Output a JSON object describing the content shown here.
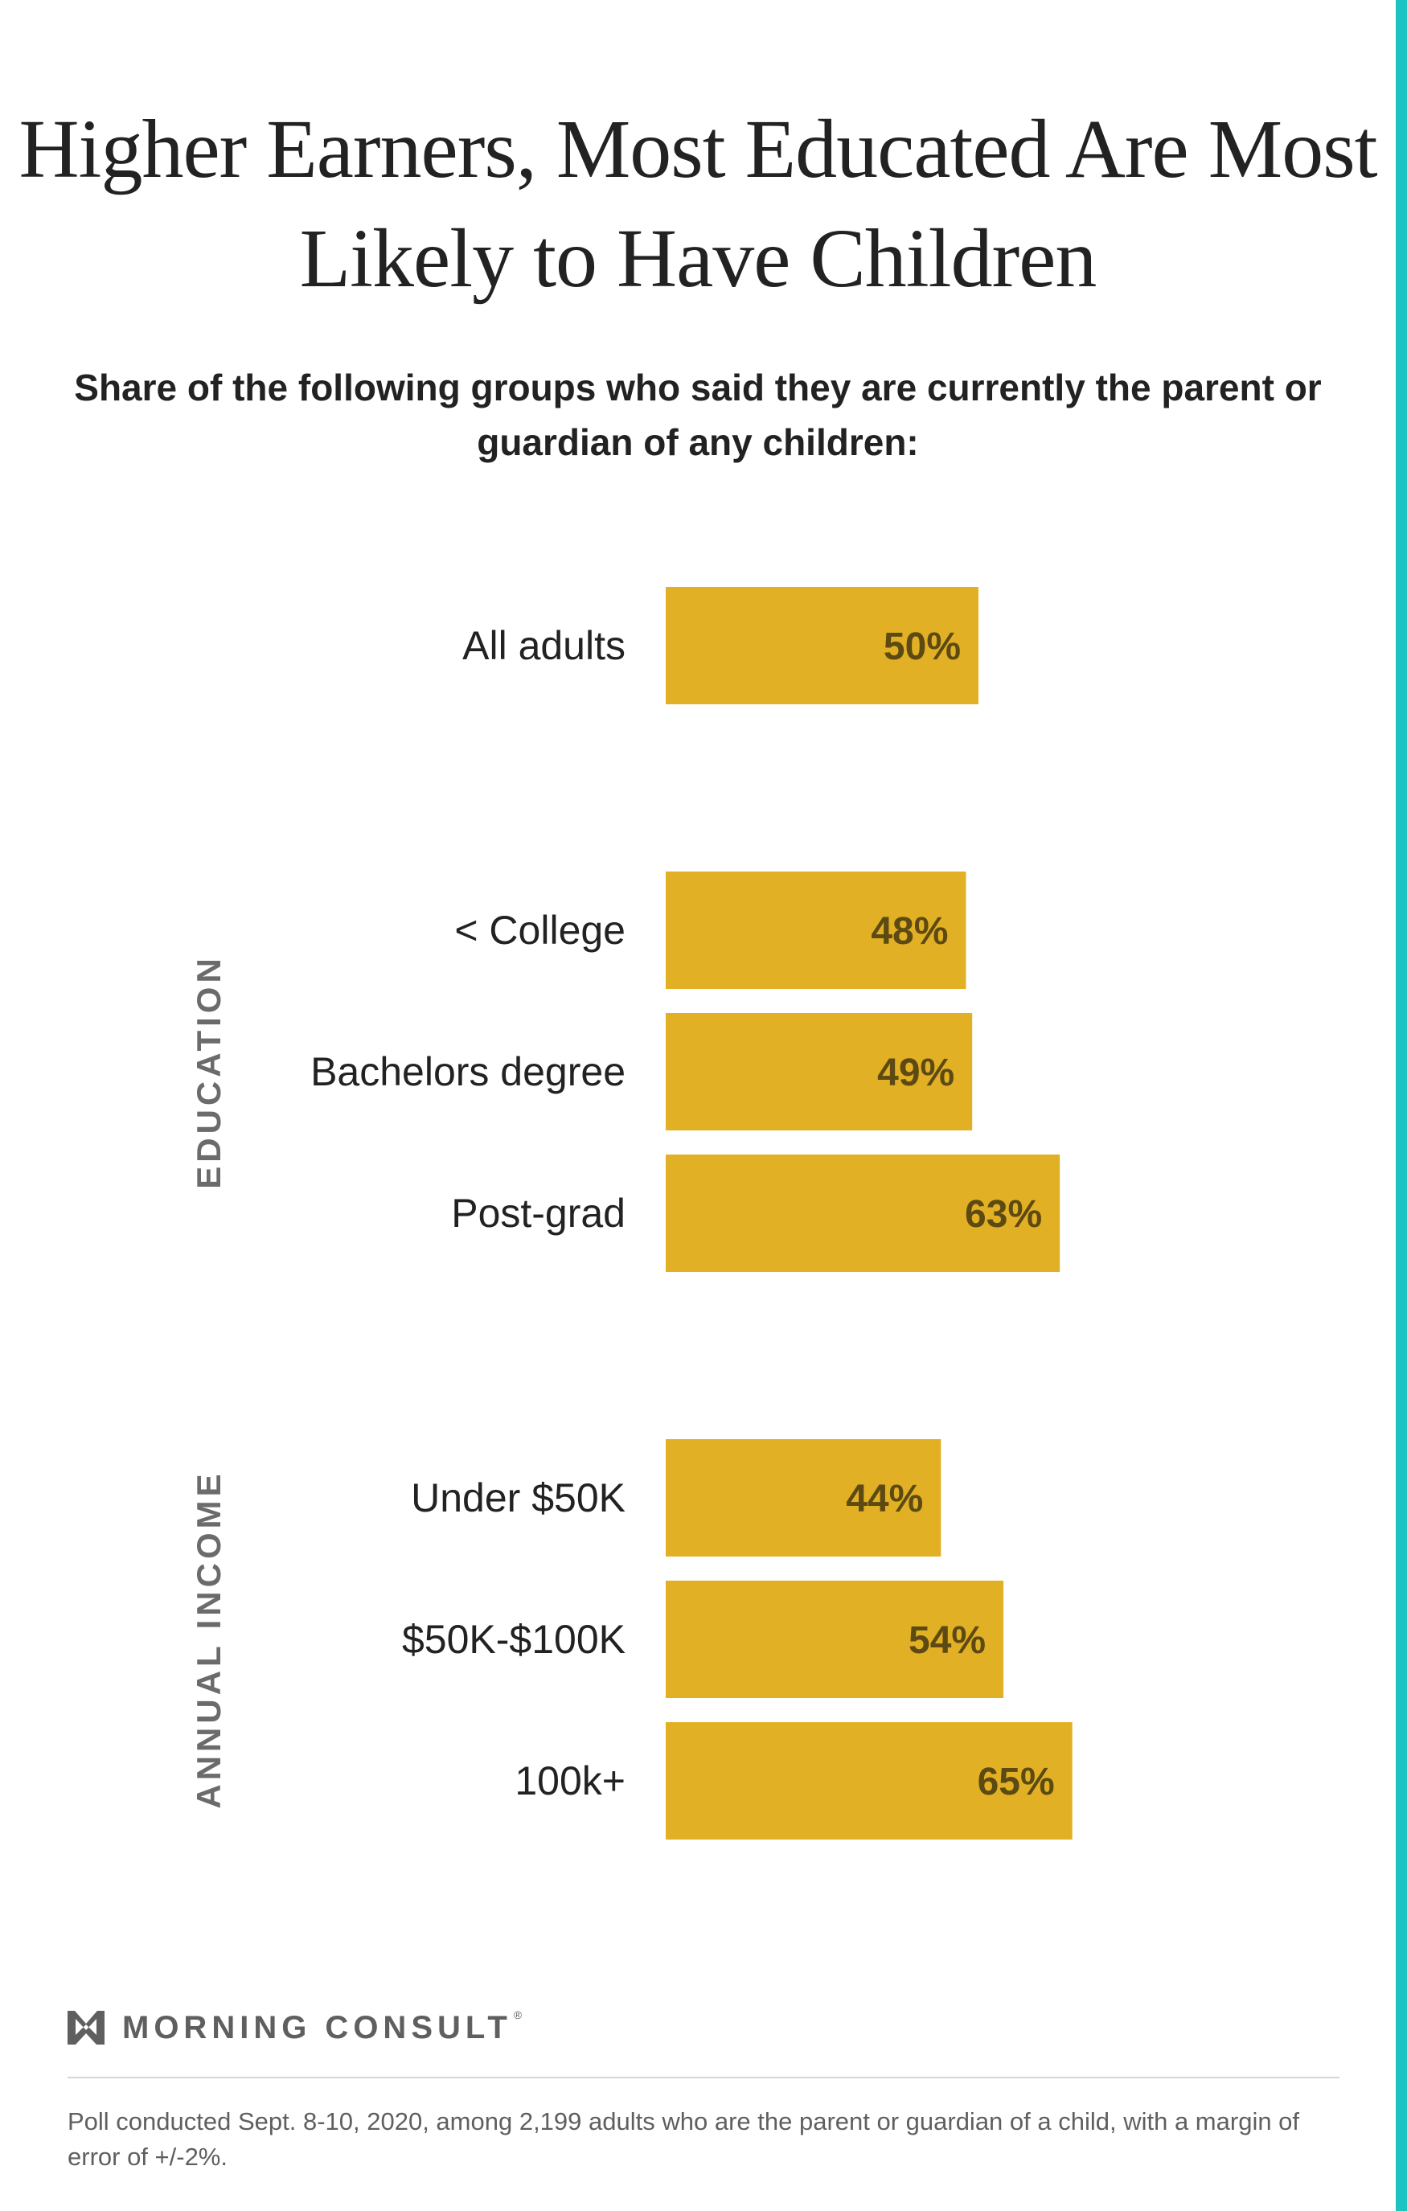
{
  "colors": {
    "bar": "#e2b024",
    "value_label": "#5c4a12",
    "category_label": "#222222",
    "group_label": "#6b6b6b",
    "accent_strip": "#1cc3c3"
  },
  "chart_data": {
    "type": "bar",
    "orientation": "horizontal",
    "title": "Higher Earners, Most Educated Are Most Likely to Have Children",
    "subtitle": "Share of the following groups who said they are currently the parent or guardian of any children:",
    "unit": "%",
    "xlim": [
      0,
      100
    ],
    "grid": false,
    "groups": [
      {
        "name": "",
        "categories": [
          "All adults"
        ],
        "values": [
          50
        ],
        "labels": [
          "50%"
        ]
      },
      {
        "name": "EDUCATION",
        "categories": [
          "< College",
          "Bachelors degree",
          "Post-grad"
        ],
        "values": [
          48,
          49,
          63
        ],
        "labels": [
          "48%",
          "49%",
          "63%"
        ]
      },
      {
        "name": "ANNUAL INCOME",
        "categories": [
          "Under $50K",
          "$50K-$100K",
          "100k+"
        ],
        "values": [
          44,
          54,
          65
        ],
        "labels": [
          "44%",
          "54%",
          "65%"
        ]
      }
    ]
  },
  "branding": {
    "logo_icon": "morning-consult-m-icon",
    "name": "MORNING CONSULT",
    "registered_mark": "®"
  },
  "footnote": "Poll conducted Sept. 8-10, 2020, among 2,199 adults who are the parent or guardian of a child, with a margin of error of +/-2%."
}
